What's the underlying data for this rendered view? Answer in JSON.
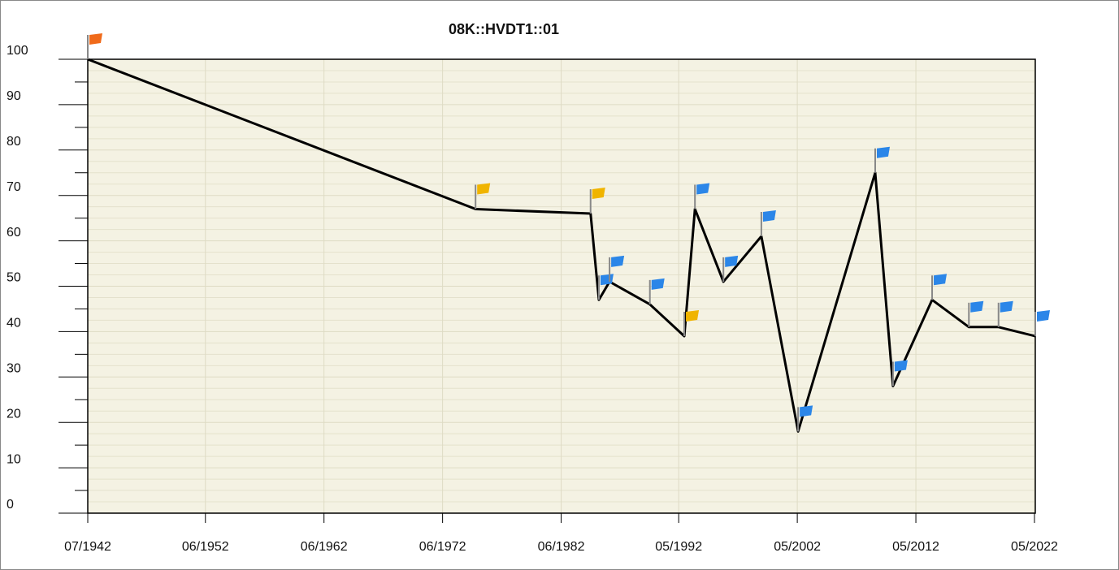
{
  "chart_data": {
    "type": "line",
    "title": "08K::HVDT1::01",
    "x": [
      1942.5,
      1975.2,
      1984.9,
      1985.6,
      1986.5,
      1989.9,
      1992.8,
      1993.7,
      1996.1,
      1999.3,
      2002.4,
      2008.9,
      2010.4,
      2013.7,
      2016.8,
      2019.3,
      2022.4
    ],
    "series": [
      {
        "color": "#000000",
        "values": [
          100,
          67,
          66,
          47,
          51,
          46,
          39,
          67,
          51,
          61,
          18,
          75,
          28,
          47,
          41,
          41,
          39
        ],
        "marker_colors": [
          "#f06a1a",
          "#f0b400",
          "#f0b400",
          "#2b86e8",
          "#2b86e8",
          "#2b86e8",
          "#f0b400",
          "#2b86e8",
          "#2b86e8",
          "#2b86e8",
          "#2b86e8",
          "#2b86e8",
          "#2b86e8",
          "#2b86e8",
          "#2b86e8",
          "#2b86e8",
          "#2b86e8"
        ]
      }
    ],
    "xlim": [
      1942.5,
      2022.4
    ],
    "xticks": [
      {
        "value": 1942.5,
        "label": "07/1942"
      },
      {
        "value": 1952.42,
        "label": "06/1952"
      },
      {
        "value": 1962.42,
        "label": "06/1962"
      },
      {
        "value": 1972.42,
        "label": "06/1972"
      },
      {
        "value": 1982.42,
        "label": "06/1982"
      },
      {
        "value": 1992.33,
        "label": "05/1992"
      },
      {
        "value": 2002.33,
        "label": "05/2002"
      },
      {
        "value": 2012.33,
        "label": "05/2012"
      },
      {
        "value": 2022.33,
        "label": "05/2022"
      }
    ],
    "ylim": [
      0,
      100
    ],
    "yticks": [
      0,
      10,
      20,
      30,
      40,
      50,
      60,
      70,
      80,
      90,
      100
    ],
    "grid": true
  }
}
